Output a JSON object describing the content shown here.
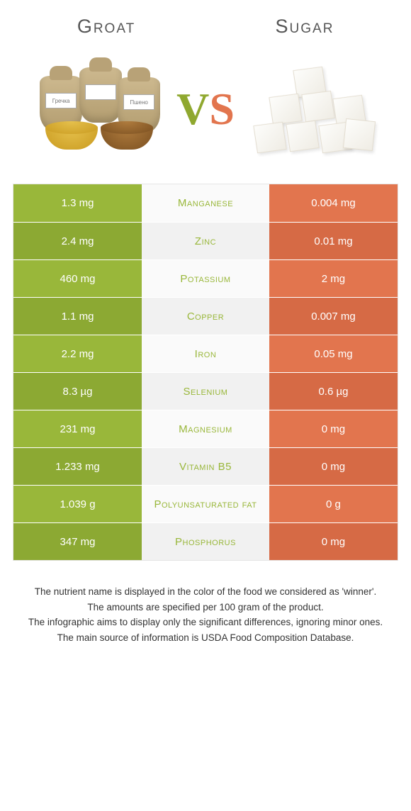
{
  "header": {
    "left_title": "Groat",
    "right_title": "Sugar"
  },
  "vs": {
    "v": "V",
    "s": "S"
  },
  "colors": {
    "left": "#99b73a",
    "left_alt": "#8ca933",
    "right": "#e2754e",
    "right_alt": "#d66a45",
    "mid": "#fafafa",
    "mid_alt": "#f1f1f1",
    "mid_text": "#99b73a"
  },
  "comparison": {
    "rows": [
      {
        "left": "1.3 mg",
        "label": "Manganese",
        "right": "0.004 mg"
      },
      {
        "left": "2.4 mg",
        "label": "Zinc",
        "right": "0.01 mg"
      },
      {
        "left": "460 mg",
        "label": "Potassium",
        "right": "2 mg"
      },
      {
        "left": "1.1 mg",
        "label": "Copper",
        "right": "0.007 mg"
      },
      {
        "left": "2.2 mg",
        "label": "Iron",
        "right": "0.05 mg"
      },
      {
        "left": "8.3 µg",
        "label": "Selenium",
        "right": "0.6 µg"
      },
      {
        "left": "231 mg",
        "label": "Magnesium",
        "right": "0 mg"
      },
      {
        "left": "1.233 mg",
        "label": "Vitamin B5",
        "right": "0 mg"
      },
      {
        "left": "1.039 g",
        "label": "Polyunsaturated fat",
        "right": "0 g"
      },
      {
        "left": "347 mg",
        "label": "Phosphorus",
        "right": "0 mg"
      }
    ]
  },
  "footer": {
    "line1": "The nutrient name is displayed in the color of the food we considered as 'winner'.",
    "line2": "The amounts are specified per 100 gram of the product.",
    "line3": "The infographic aims to display only the significant differences, ignoring minor ones.",
    "line4": "The main source of information is USDA Food Composition Database."
  }
}
